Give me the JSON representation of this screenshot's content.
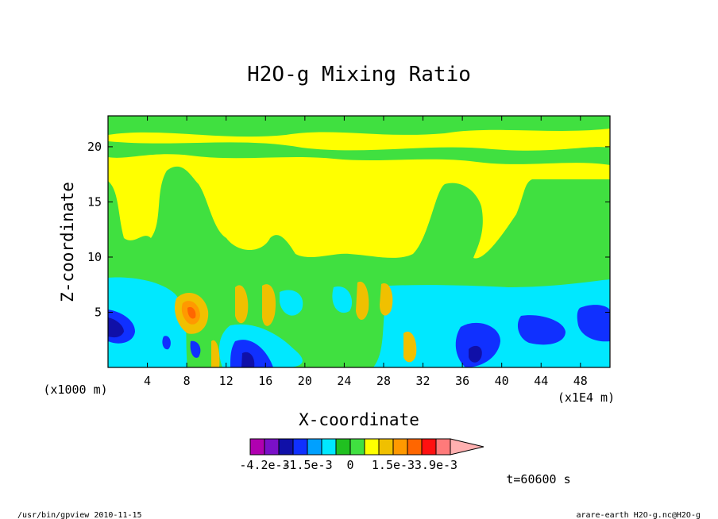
{
  "chart_data": {
    "type": "heatmap",
    "title": "H2O-g Mixing Ratio",
    "xlabel": "X-coordinate",
    "ylabel": "Z-coordinate",
    "x_unit_left": "(x1000 m)",
    "x_unit_right": "(x1E4 m)",
    "xlim": [
      0,
      51
    ],
    "ylim": [
      0,
      22.8
    ],
    "x_ticks": [
      {
        "value": 4,
        "label": "4"
      },
      {
        "value": 8,
        "label": "8"
      },
      {
        "value": 12,
        "label": "12"
      },
      {
        "value": 16,
        "label": "16"
      },
      {
        "value": 20,
        "label": "20"
      },
      {
        "value": 24,
        "label": "24"
      },
      {
        "value": 28,
        "label": "28"
      },
      {
        "value": 32,
        "label": "32"
      },
      {
        "value": 36,
        "label": "36"
      },
      {
        "value": 40,
        "label": "40"
      },
      {
        "value": 44,
        "label": "44"
      },
      {
        "value": 48,
        "label": "48"
      }
    ],
    "y_ticks": [
      {
        "value": 5,
        "label": "5"
      },
      {
        "value": 10,
        "label": "10"
      },
      {
        "value": 15,
        "label": "15"
      },
      {
        "value": 20,
        "label": "20"
      }
    ],
    "colorbar": {
      "colors": [
        "#b000b0",
        "#7a10c8",
        "#1010a8",
        "#1030ff",
        "#00a0ff",
        "#00e8ff",
        "#20c020",
        "#40e040",
        "#ffff00",
        "#f0c000",
        "#ff9900",
        "#ff6600",
        "#ff1010",
        "#ff7a7a",
        "#ffb0b0"
      ],
      "tick_labels": [
        {
          "text": "-4.2e-3",
          "at_box": 0
        },
        {
          "text": "-1.5e-3",
          "at_box": 3
        },
        {
          "text": "0",
          "at_box": 6
        },
        {
          "text": "1.5e-3",
          "at_box": 9
        },
        {
          "text": "3.9e-3",
          "at_box": 12
        }
      ]
    },
    "time_label": "t=60600 s",
    "grid": false
  },
  "footer": {
    "left": "/usr/bin/gpview  2010-11-15",
    "right": "arare-earth_H2O-g.nc@H2O-g"
  }
}
